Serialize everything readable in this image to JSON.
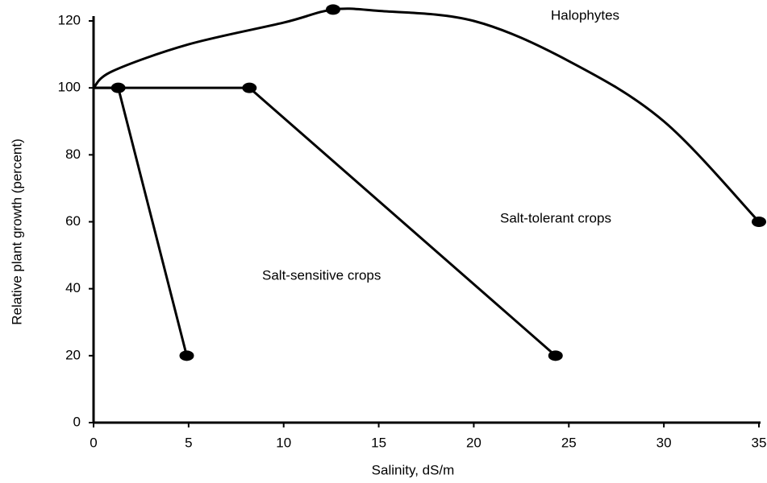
{
  "chart_data": {
    "type": "line",
    "xlabel": "Salinity, dS/m",
    "ylabel": "Relative plant growth (percent)",
    "xlim": [
      0,
      35
    ],
    "xticks": [
      0,
      5,
      10,
      15,
      20,
      25,
      30,
      35
    ],
    "ylim": [
      0,
      120
    ],
    "yticks": [
      0,
      20,
      40,
      60,
      80,
      100,
      120
    ],
    "series": [
      {
        "name": "Halophytes",
        "color": "#000000",
        "smooth": true,
        "x": [
          0,
          1,
          5,
          10,
          12.6,
          15,
          20,
          25,
          30,
          35
        ],
        "values": [
          100,
          105,
          113,
          119.5,
          123.4,
          123,
          120,
          108,
          90,
          60
        ],
        "markers": [
          4,
          9
        ]
      },
      {
        "name": "Salt-tolerant crops",
        "color": "#000000",
        "smooth": false,
        "x": [
          0,
          8.2,
          24.3
        ],
        "values": [
          100,
          100,
          20
        ],
        "markers": [
          1,
          2
        ]
      },
      {
        "name": "Salt-sensitive crops",
        "color": "#000000",
        "smooth": false,
        "x": [
          0,
          1.3,
          4.9
        ],
        "values": [
          100,
          100,
          20
        ],
        "markers": [
          1,
          2
        ]
      }
    ]
  }
}
